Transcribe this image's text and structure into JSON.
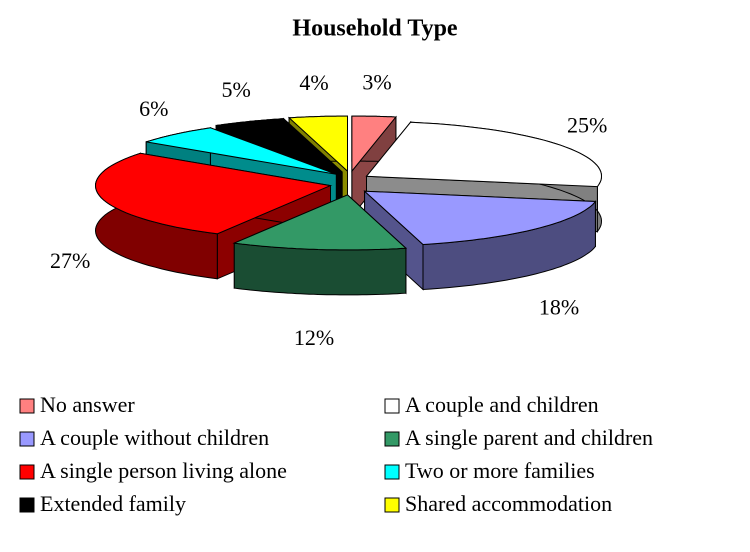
{
  "chart_data": {
    "type": "pie",
    "title": "Household Type",
    "categories": [
      "No answer",
      "A couple and children",
      "A couple without children",
      "A single parent and children",
      "A single person living alone",
      "Two or more families",
      "Extended family",
      "Shared accommodation"
    ],
    "values": [
      3,
      25,
      18,
      12,
      27,
      6,
      5,
      4
    ],
    "value_labels": [
      "3%",
      "25%",
      "18%",
      "12%",
      "27%",
      "6%",
      "5%",
      "4%"
    ],
    "colors": [
      "#ff8080",
      "#ffffff",
      "#9999ff",
      "#339966",
      "#ff0000",
      "#00ffff",
      "#000000",
      "#ffff00"
    ]
  }
}
